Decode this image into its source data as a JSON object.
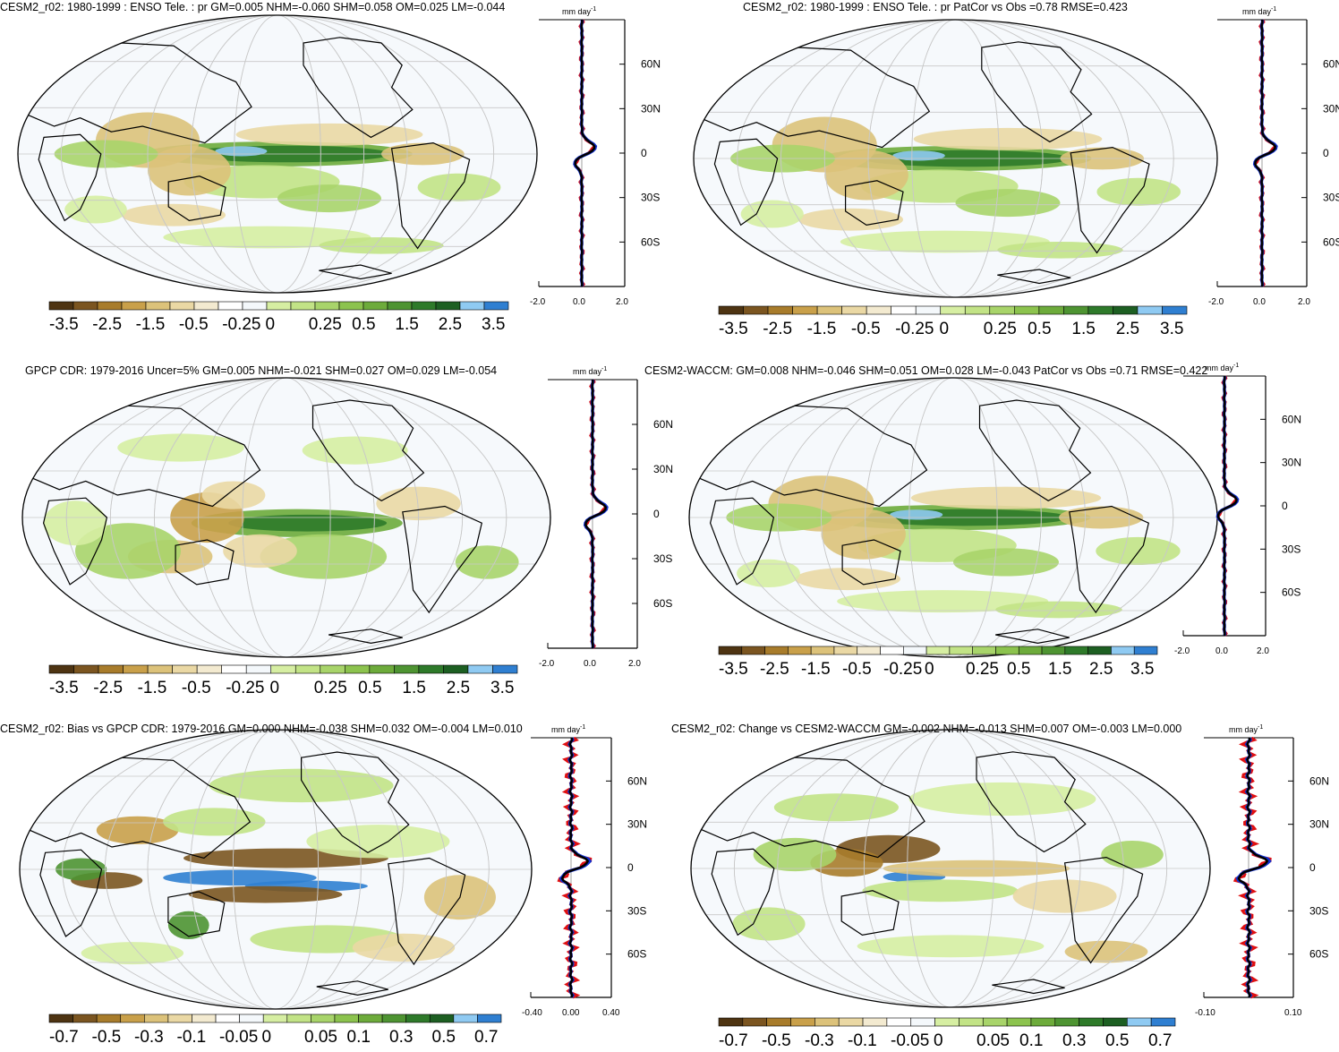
{
  "palette": [
    "#4e3412",
    "#7b5520",
    "#a87c2b",
    "#c9a04a",
    "#dcc27a",
    "#ead8a4",
    "#f3ead0",
    "#ffffff",
    "#f4f8fb",
    "#d6eea2",
    "#c2e386",
    "#a8d46a",
    "#8cc34e",
    "#6dab3b",
    "#4e9432",
    "#2e7a2a",
    "#1d5f22",
    "#8fcaf2",
    "#2f7fd1"
  ],
  "panels": [
    {
      "title": "CESM2_r02: 1980-1999 : ENSO Tele. : pr GM=0.005 NHM=-0.060 SHM=0.058 OM=0.025 LM=-0.044",
      "unit": "mm day",
      "unit_exp": "-1",
      "lat_labels": [
        "60N",
        "30N",
        "0",
        "30S",
        "60S"
      ],
      "x_ticks": [
        "-2.0",
        "0.0",
        "2.0"
      ],
      "colorbar_labels": [
        "-3.5",
        "-2.5",
        "-1.5",
        "-0.5",
        "-0.25",
        "0",
        "0.25",
        "0.5",
        "1.5",
        "2.5",
        "3.5"
      ],
      "field": "model",
      "bias": false
    },
    {
      "title": "CESM2_r02: 1980-1999 : ENSO Tele. : pr PatCor vs Obs =0.78 RMSE=0.423",
      "unit": "mm day",
      "unit_exp": "-1",
      "lat_labels": [
        "60N",
        "30N",
        "0",
        "30S",
        "60S"
      ],
      "x_ticks": [
        "-2.0",
        "0.0",
        "2.0"
      ],
      "colorbar_labels": [
        "-3.5",
        "-2.5",
        "-1.5",
        "-0.5",
        "-0.25",
        "0",
        "0.25",
        "0.5",
        "1.5",
        "2.5",
        "3.5"
      ],
      "field": "model",
      "bias": false
    },
    {
      "title": "GPCP CDR: 1979-2016 Uncer=5% GM=0.005 NHM=-0.021 SHM=0.027 OM=0.029 LM=-0.054",
      "unit": "mm day",
      "unit_exp": "-1",
      "lat_labels": [
        "60N",
        "30N",
        "0",
        "30S",
        "60S"
      ],
      "x_ticks": [
        "-2.0",
        "0.0",
        "2.0"
      ],
      "colorbar_labels": [
        "-3.5",
        "-2.5",
        "-1.5",
        "-0.5",
        "-0.25",
        "0",
        "0.25",
        "0.5",
        "1.5",
        "2.5",
        "3.5"
      ],
      "field": "obs",
      "bias": false
    },
    {
      "title": "CESM2-WACCM: GM=0.008 NHM=-0.046 SHM=0.051 OM=0.028 LM=-0.043 PatCor vs Obs =0.71 RMSE=0.422",
      "unit": "mm day",
      "unit_exp": "-1",
      "lat_labels": [
        "60N",
        "30N",
        "0",
        "30S",
        "60S"
      ],
      "x_ticks": [
        "-2.0",
        "0.0",
        "2.0"
      ],
      "colorbar_labels": [
        "-3.5",
        "-2.5",
        "-1.5",
        "-0.5",
        "-0.25",
        "0",
        "0.25",
        "0.5",
        "1.5",
        "2.5",
        "3.5"
      ],
      "field": "model",
      "bias": false
    },
    {
      "title": "CESM2_r02: Bias vs GPCP CDR: 1979-2016 GM=0.000 NHM=-0.038 SHM=0.032 OM=-0.004 LM=0.010",
      "unit": "mm day",
      "unit_exp": "-1",
      "lat_labels": [
        "60N",
        "30N",
        "0",
        "30S",
        "60S"
      ],
      "x_ticks": [
        "-0.40",
        "0.00",
        "0.40"
      ],
      "colorbar_labels": [
        "-0.7",
        "-0.5",
        "-0.3",
        "-0.1",
        "-0.05",
        "0",
        "0.05",
        "0.1",
        "0.3",
        "0.5",
        "0.7"
      ],
      "field": "bias",
      "bias": true
    },
    {
      "title": "CESM2_r02: Change vs CESM2-WACCM GM=-0.002 NHM=-0.013 SHM=0.007 OM=-0.003 LM=0.000",
      "unit": "mm day",
      "unit_exp": "-1",
      "lat_labels": [
        "60N",
        "30N",
        "0",
        "30S",
        "60S"
      ],
      "x_ticks": [
        "-0.10",
        "0.10"
      ],
      "colorbar_labels": [
        "-0.7",
        "-0.5",
        "-0.3",
        "-0.1",
        "-0.05",
        "0",
        "0.05",
        "0.1",
        "0.3",
        "0.5",
        "0.7"
      ],
      "field": "change",
      "bias": true
    }
  ]
}
